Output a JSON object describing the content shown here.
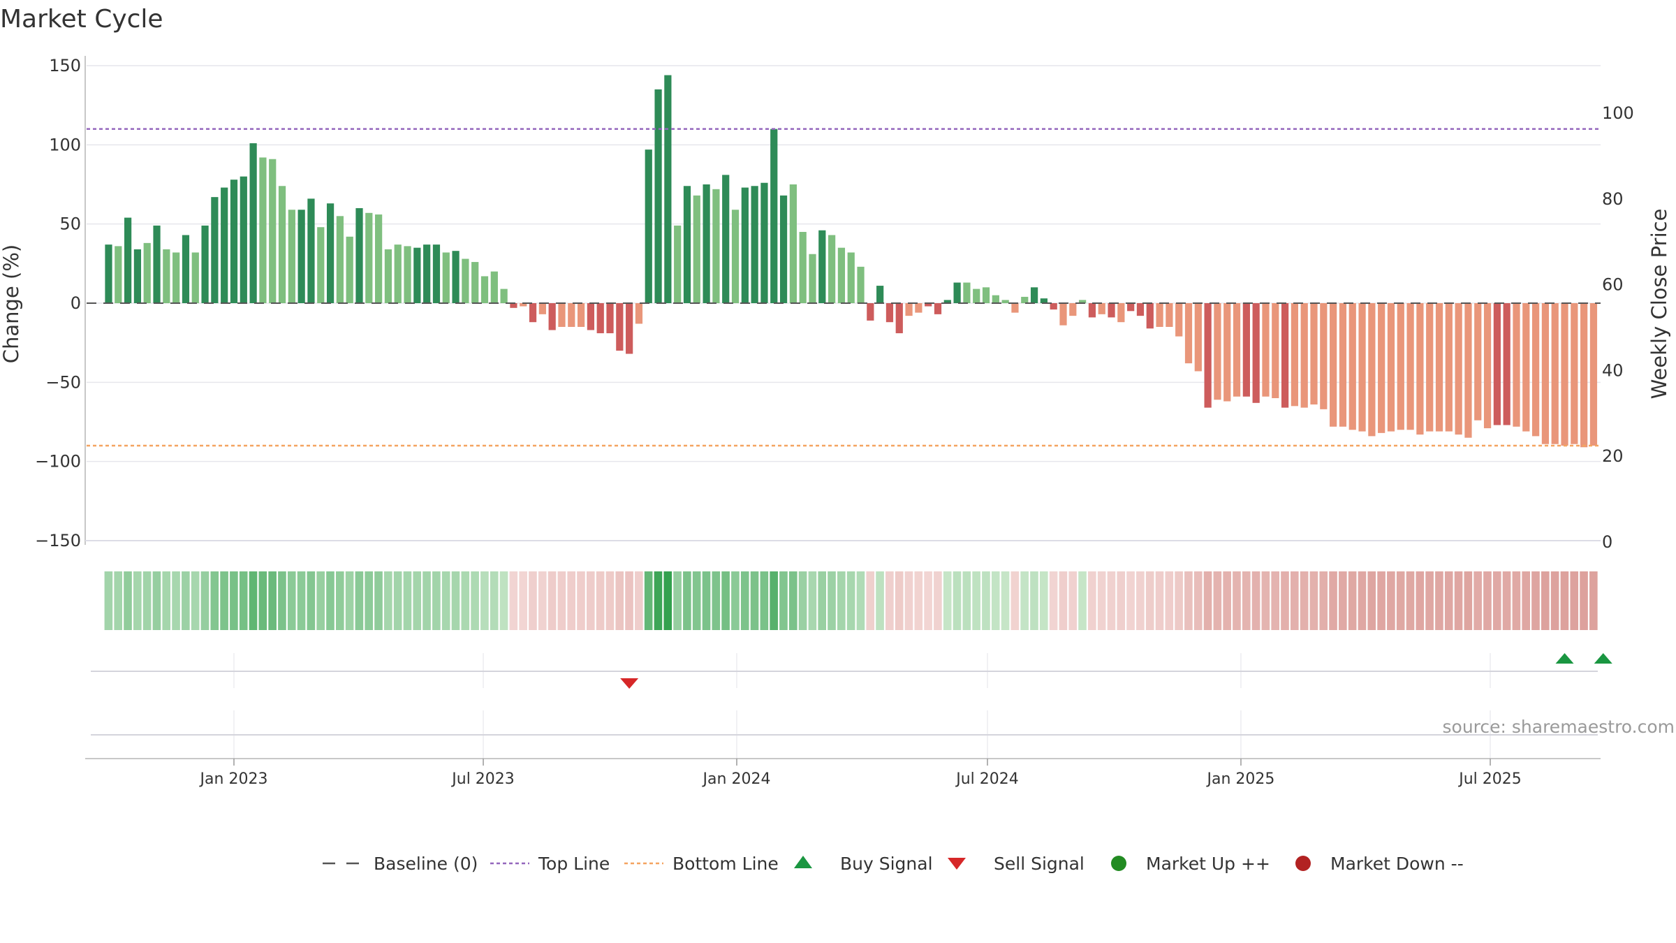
{
  "title": "Market Cycle",
  "source": "source: sharemaestro.com",
  "colors": {
    "up_strong": "#2e8b57",
    "up_light": "#7fbf7f",
    "down_strong": "#cd5c5c",
    "down_light": "#e9967a",
    "top_line": "#9467bd",
    "bottom_line": "#f4a460",
    "baseline": "#555555",
    "buy": "#1a9641",
    "sell": "#d62728",
    "market_up": "#228b22",
    "market_down": "#b22222"
  },
  "chart_data": {
    "type": "bar",
    "x_start": "2022-10-02",
    "x_interval_days": 7,
    "x_ticks": [
      "Jan 2023",
      "Jul 2023",
      "Jan 2024",
      "Jul 2024",
      "Jan 2025",
      "Jul 2025"
    ],
    "y_left": {
      "label": "Change (%)",
      "ylim": [
        -150,
        150
      ],
      "ticks": [
        150,
        100,
        50,
        0,
        -50,
        -100,
        -150
      ],
      "tick_labels": [
        "150",
        "100",
        "50",
        "0",
        "−50",
        "−100",
        "−150"
      ]
    },
    "y_right": {
      "label": "Weekly Close Price",
      "ylim": [
        0,
        110
      ],
      "ticks": [
        100,
        80,
        60,
        40,
        20,
        0
      ],
      "tick_labels": [
        "100",
        "80",
        "60",
        "40",
        "20",
        "0"
      ]
    },
    "top_line": 110,
    "bottom_line": -90,
    "values": [
      37,
      36,
      54,
      34,
      38,
      49,
      34,
      32,
      43,
      32,
      49,
      67,
      73,
      78,
      80,
      101,
      92,
      91,
      74,
      59,
      59,
      66,
      48,
      63,
      55,
      42,
      60,
      57,
      56,
      34,
      37,
      36,
      35,
      37,
      37,
      32,
      33,
      28,
      26,
      17,
      20,
      9,
      -3,
      -2,
      -12,
      -7,
      -17,
      -15,
      -15,
      -15,
      -17,
      -19,
      -19,
      -30,
      -32,
      -13,
      97,
      135,
      144,
      49,
      74,
      68,
      75,
      72,
      81,
      59,
      73,
      74,
      76,
      110,
      68,
      75,
      45,
      31,
      46,
      43,
      35,
      32,
      23,
      -11,
      11,
      -12,
      -19,
      -8,
      -6,
      -2,
      -7,
      2,
      13,
      13,
      9,
      10,
      5,
      2,
      -6,
      4,
      10,
      3,
      -4,
      -14,
      -8,
      2,
      -9,
      -7,
      -9,
      -12,
      -5,
      -8,
      -16,
      -15,
      -15,
      -21,
      -38,
      -43,
      -66,
      -61,
      -62,
      -59,
      -59,
      -63,
      -59,
      -60,
      -66,
      -65,
      -66,
      -64,
      -67,
      -78,
      -78,
      -80,
      -81,
      -84,
      -82,
      -81,
      -80,
      -80,
      -83,
      -81,
      -81,
      -81,
      -83,
      -85,
      -74,
      -79,
      -77,
      -77,
      -78,
      -81,
      -84,
      -89,
      -89,
      -90,
      -89,
      -91,
      -90
    ],
    "light_indices": [
      1,
      4,
      6,
      7,
      9,
      16,
      17,
      18,
      19,
      22,
      24,
      25,
      27,
      28,
      29,
      30,
      31,
      35,
      37,
      38,
      39,
      40,
      41,
      43,
      45,
      47,
      48,
      49,
      55,
      59,
      61,
      63,
      65,
      71,
      72,
      73,
      75,
      76,
      77,
      78,
      83,
      84,
      89,
      90,
      91,
      92,
      93,
      94,
      95,
      99,
      100,
      101,
      103,
      105,
      109,
      110,
      111,
      112,
      113,
      115,
      116,
      117,
      120,
      121,
      123,
      124,
      125,
      126,
      127,
      128,
      129,
      130,
      131,
      132,
      133,
      134,
      135,
      136,
      137,
      138,
      139,
      140,
      141,
      142,
      143,
      146,
      147,
      148,
      149,
      150,
      151,
      152,
      153,
      154,
      155,
      156,
      157
    ],
    "buy_signal_dates": [
      "2025-08-24",
      "2025-09-21"
    ],
    "sell_signal_dates": [
      "2023-10-15"
    ],
    "legend": [
      "Baseline (0)",
      "Top Line",
      "Bottom Line",
      "Buy Signal",
      "Sell Signal",
      "Market Up ++",
      "Market Down --"
    ]
  }
}
